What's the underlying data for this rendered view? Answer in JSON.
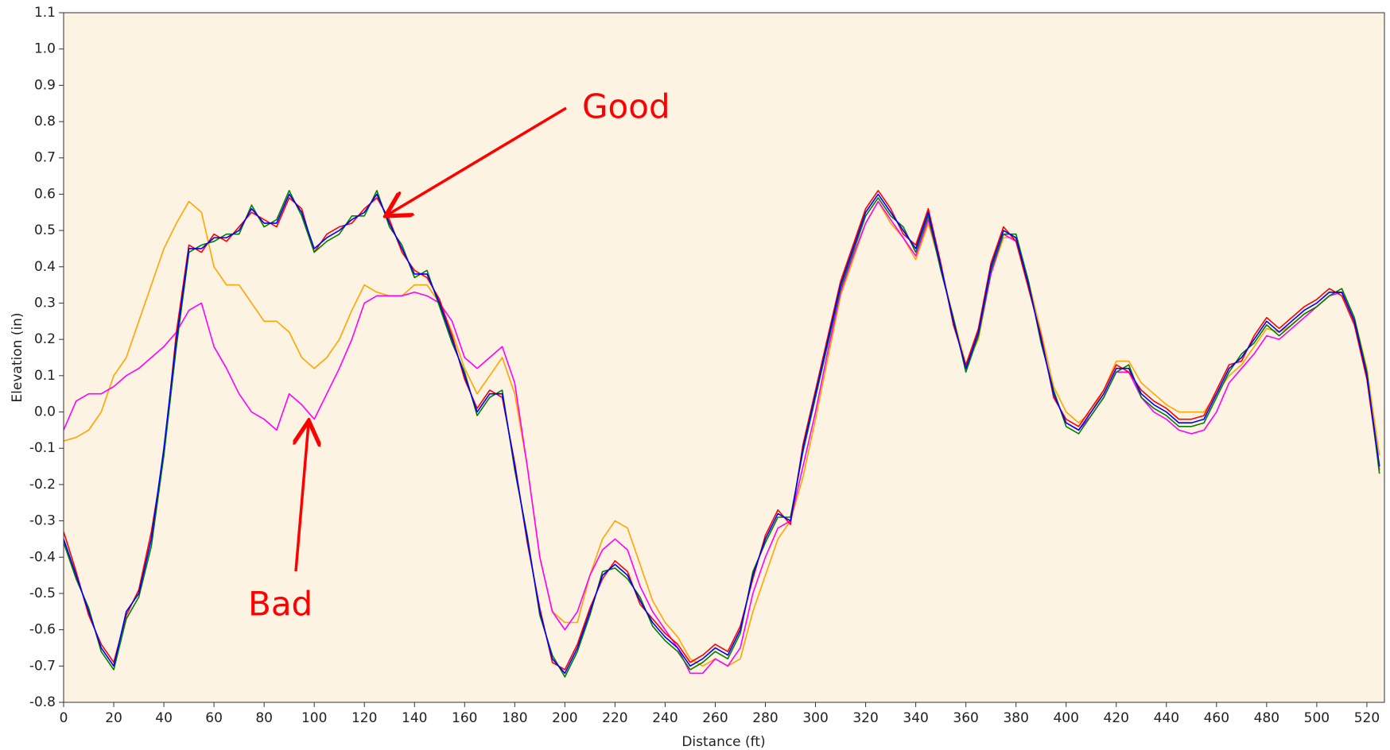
{
  "chart_data": {
    "type": "line",
    "x_label": "Distance (ft)",
    "y_label": "Elevation (in)",
    "x": [
      0,
      5,
      10,
      15,
      20,
      25,
      30,
      35,
      40,
      45,
      50,
      55,
      60,
      65,
      70,
      75,
      80,
      85,
      90,
      95,
      100,
      105,
      110,
      115,
      120,
      125,
      130,
      135,
      140,
      145,
      150,
      155,
      160,
      165,
      170,
      175,
      180,
      185,
      190,
      195,
      200,
      205,
      210,
      215,
      220,
      225,
      230,
      235,
      240,
      245,
      250,
      255,
      260,
      265,
      270,
      275,
      280,
      285,
      290,
      295,
      300,
      305,
      310,
      315,
      320,
      325,
      330,
      335,
      340,
      345,
      350,
      355,
      360,
      365,
      370,
      375,
      380,
      385,
      390,
      395,
      400,
      405,
      410,
      415,
      420,
      425,
      430,
      435,
      440,
      445,
      450,
      455,
      460,
      465,
      470,
      475,
      480,
      485,
      490,
      495,
      500,
      505,
      510,
      515,
      520,
      525
    ],
    "series": [
      {
        "color": "#ffa500",
        "values": [
          -0.08,
          -0.07,
          -0.05,
          0.0,
          0.1,
          0.15,
          0.25,
          0.35,
          0.45,
          0.52,
          0.58,
          0.55,
          0.4,
          0.35,
          0.35,
          0.3,
          0.25,
          0.25,
          0.22,
          0.15,
          0.12,
          0.15,
          0.2,
          0.28,
          0.35,
          0.33,
          0.32,
          0.32,
          0.35,
          0.35,
          0.3,
          0.22,
          0.12,
          0.05,
          0.1,
          0.15,
          0.05,
          -0.15,
          -0.4,
          -0.55,
          -0.58,
          -0.58,
          -0.45,
          -0.35,
          -0.3,
          -0.32,
          -0.42,
          -0.52,
          -0.58,
          -0.62,
          -0.68,
          -0.7,
          -0.68,
          -0.7,
          -0.68,
          -0.55,
          -0.45,
          -0.35,
          -0.3,
          -0.18,
          -0.02,
          0.15,
          0.32,
          0.42,
          0.52,
          0.58,
          0.52,
          0.48,
          0.42,
          0.52,
          0.4,
          0.26,
          0.13,
          0.2,
          0.38,
          0.48,
          0.48,
          0.36,
          0.22,
          0.07,
          0.0,
          -0.03,
          0.0,
          0.06,
          0.14,
          0.14,
          0.08,
          0.05,
          0.02,
          0.0,
          0.0,
          0.0,
          0.05,
          0.1,
          0.13,
          0.18,
          0.23,
          0.22,
          0.24,
          0.27,
          0.29,
          0.32,
          0.33,
          0.26,
          0.12,
          -0.12
        ]
      },
      {
        "color": "#ff00ff",
        "values": [
          -0.05,
          0.03,
          0.05,
          0.05,
          0.07,
          0.1,
          0.12,
          0.15,
          0.18,
          0.22,
          0.28,
          0.3,
          0.18,
          0.12,
          0.05,
          0.0,
          -0.02,
          -0.05,
          0.05,
          0.02,
          -0.02,
          0.05,
          0.12,
          0.2,
          0.3,
          0.32,
          0.32,
          0.32,
          0.33,
          0.32,
          0.3,
          0.25,
          0.15,
          0.12,
          0.15,
          0.18,
          0.08,
          -0.15,
          -0.4,
          -0.55,
          -0.6,
          -0.55,
          -0.45,
          -0.38,
          -0.35,
          -0.38,
          -0.48,
          -0.55,
          -0.6,
          -0.65,
          -0.72,
          -0.72,
          -0.68,
          -0.7,
          -0.65,
          -0.5,
          -0.4,
          -0.32,
          -0.3,
          -0.15,
          0.0,
          0.17,
          0.33,
          0.43,
          0.52,
          0.58,
          0.53,
          0.48,
          0.43,
          0.53,
          0.4,
          0.25,
          0.12,
          0.21,
          0.38,
          0.49,
          0.47,
          0.35,
          0.2,
          0.05,
          -0.03,
          -0.05,
          -0.01,
          0.04,
          0.11,
          0.11,
          0.04,
          0.0,
          -0.02,
          -0.05,
          -0.06,
          -0.05,
          0.0,
          0.08,
          0.12,
          0.16,
          0.21,
          0.2,
          0.23,
          0.26,
          0.29,
          0.32,
          0.33,
          0.25,
          0.1,
          -0.15
        ]
      },
      {
        "color": "#ff0000",
        "values": [
          -0.33,
          -0.44,
          -0.56,
          -0.64,
          -0.69,
          -0.56,
          -0.49,
          -0.33,
          -0.12,
          0.22,
          0.46,
          0.44,
          0.49,
          0.47,
          0.51,
          0.55,
          0.53,
          0.51,
          0.59,
          0.56,
          0.44,
          0.49,
          0.51,
          0.52,
          0.56,
          0.59,
          0.53,
          0.44,
          0.39,
          0.37,
          0.31,
          0.21,
          0.09,
          0.01,
          0.06,
          0.04,
          -0.14,
          -0.36,
          -0.54,
          -0.69,
          -0.71,
          -0.64,
          -0.54,
          -0.46,
          -0.41,
          -0.44,
          -0.53,
          -0.57,
          -0.61,
          -0.64,
          -0.69,
          -0.67,
          -0.64,
          -0.66,
          -0.59,
          -0.46,
          -0.34,
          -0.27,
          -0.31,
          -0.09,
          0.06,
          0.21,
          0.36,
          0.46,
          0.56,
          0.61,
          0.56,
          0.49,
          0.46,
          0.56,
          0.41,
          0.24,
          0.13,
          0.23,
          0.41,
          0.51,
          0.47,
          0.34,
          0.21,
          0.04,
          -0.02,
          -0.04,
          0.01,
          0.06,
          0.13,
          0.11,
          0.06,
          0.03,
          0.01,
          -0.02,
          -0.02,
          -0.01,
          0.06,
          0.13,
          0.14,
          0.21,
          0.26,
          0.23,
          0.26,
          0.29,
          0.31,
          0.34,
          0.32,
          0.24,
          0.09,
          -0.16
        ]
      },
      {
        "color": "#008000",
        "values": [
          -0.36,
          -0.46,
          -0.54,
          -0.66,
          -0.71,
          -0.57,
          -0.51,
          -0.37,
          -0.12,
          0.18,
          0.44,
          0.46,
          0.47,
          0.49,
          0.49,
          0.57,
          0.51,
          0.53,
          0.61,
          0.54,
          0.44,
          0.47,
          0.49,
          0.54,
          0.54,
          0.61,
          0.51,
          0.46,
          0.37,
          0.39,
          0.29,
          0.19,
          0.11,
          -0.01,
          0.04,
          0.06,
          -0.16,
          -0.34,
          -0.56,
          -0.67,
          -0.73,
          -0.66,
          -0.56,
          -0.44,
          -0.43,
          -0.46,
          -0.51,
          -0.59,
          -0.63,
          -0.66,
          -0.71,
          -0.69,
          -0.66,
          -0.68,
          -0.61,
          -0.44,
          -0.36,
          -0.29,
          -0.29,
          -0.11,
          0.04,
          0.19,
          0.34,
          0.44,
          0.54,
          0.59,
          0.54,
          0.51,
          0.44,
          0.54,
          0.39,
          0.26,
          0.11,
          0.21,
          0.39,
          0.49,
          0.49,
          0.36,
          0.19,
          0.06,
          -0.04,
          -0.06,
          -0.01,
          0.04,
          0.11,
          0.13,
          0.04,
          0.01,
          -0.01,
          -0.04,
          -0.04,
          -0.03,
          0.04,
          0.11,
          0.16,
          0.19,
          0.24,
          0.21,
          0.24,
          0.27,
          0.29,
          0.32,
          0.34,
          0.26,
          0.11,
          -0.17
        ]
      },
      {
        "color": "#0000ff",
        "values": [
          -0.35,
          -0.45,
          -0.55,
          -0.65,
          -0.7,
          -0.55,
          -0.5,
          -0.35,
          -0.1,
          0.2,
          0.45,
          0.45,
          0.48,
          0.48,
          0.5,
          0.56,
          0.52,
          0.52,
          0.6,
          0.55,
          0.45,
          0.48,
          0.5,
          0.53,
          0.55,
          0.6,
          0.52,
          0.45,
          0.38,
          0.38,
          0.3,
          0.2,
          0.1,
          0.0,
          0.05,
          0.05,
          -0.15,
          -0.35,
          -0.55,
          -0.68,
          -0.72,
          -0.65,
          -0.55,
          -0.45,
          -0.42,
          -0.45,
          -0.52,
          -0.58,
          -0.62,
          -0.65,
          -0.7,
          -0.68,
          -0.65,
          -0.67,
          -0.6,
          -0.45,
          -0.35,
          -0.28,
          -0.3,
          -0.1,
          0.05,
          0.2,
          0.35,
          0.45,
          0.55,
          0.6,
          0.55,
          0.5,
          0.45,
          0.55,
          0.4,
          0.25,
          0.12,
          0.22,
          0.4,
          0.5,
          0.48,
          0.35,
          0.2,
          0.05,
          -0.03,
          -0.05,
          0.0,
          0.05,
          0.12,
          0.12,
          0.05,
          0.02,
          0.0,
          -0.03,
          -0.03,
          -0.02,
          0.05,
          0.12,
          0.15,
          0.2,
          0.25,
          0.22,
          0.25,
          0.28,
          0.3,
          0.33,
          0.33,
          0.25,
          0.1,
          -0.15
        ]
      }
    ],
    "xlim": [
      0,
      527
    ],
    "xticks": [
      0,
      20,
      40,
      60,
      80,
      100,
      120,
      140,
      160,
      180,
      200,
      220,
      240,
      260,
      280,
      300,
      320,
      340,
      360,
      380,
      400,
      420,
      440,
      460,
      480,
      500,
      520
    ],
    "ylim": [
      -0.8,
      1.1
    ],
    "yticks": [
      -0.8,
      -0.7,
      -0.6,
      -0.5,
      -0.4,
      -0.3,
      -0.2,
      -0.1,
      {
        "value": 0,
        "label": "0.0"
      },
      0.1,
      0.2,
      0.3,
      0.4,
      0.5,
      0.6,
      0.7,
      0.8,
      0.9,
      {
        "value": 1,
        "label": "1.0"
      },
      1.1
    ],
    "grid": false,
    "plot_background": "#fdf3e2",
    "annotations": [
      {
        "text": "Good"
      },
      {
        "text": "Bad"
      }
    ]
  }
}
